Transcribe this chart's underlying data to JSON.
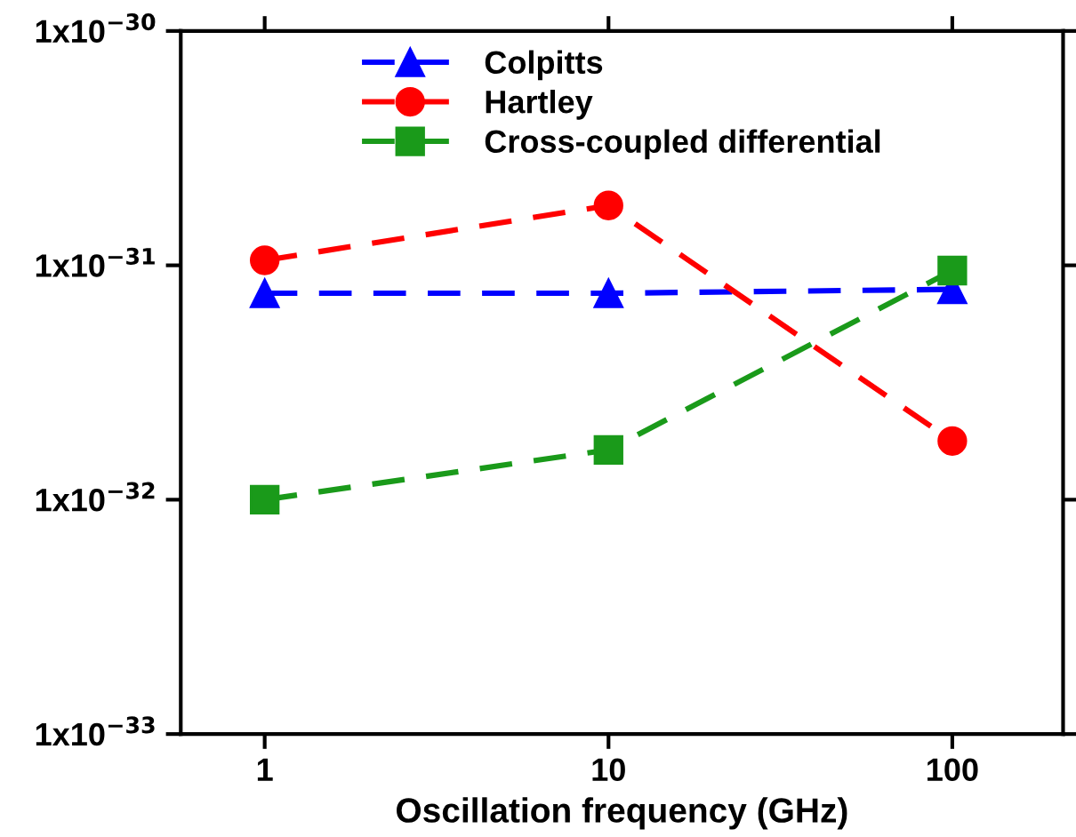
{
  "chart_data": {
    "type": "line",
    "xlabel": "Oscillation frequency (GHz)",
    "log": "xy",
    "x": [
      1,
      10,
      100
    ],
    "series": [
      {
        "name": "Colpitts",
        "color": "#0000ff",
        "marker": "triangle",
        "line_style": "dashed",
        "values": [
          7.6e-32,
          7.6e-32,
          7.9e-32
        ]
      },
      {
        "name": "Hartley",
        "color": "#ff0000",
        "marker": "circle",
        "line_style": "dashed",
        "values": [
          1.05e-31,
          1.8e-31,
          1.78e-32
        ]
      },
      {
        "name": "Cross-coupled differential",
        "color": "#1a9a1a",
        "marker": "square",
        "line_style": "dashed",
        "values": [
          1e-32,
          1.63e-32,
          9.5e-32
        ]
      }
    ],
    "xlim": [
      0.57,
      210
    ],
    "xticks": [
      1,
      10,
      100
    ],
    "ylim": [
      1e-33,
      1e-30
    ],
    "yticks": [
      {
        "value": 1e-33,
        "label": "1x10$^{−33}$"
      },
      {
        "value": 1e-32,
        "label": "1x10$^{−32}$"
      },
      {
        "value": 1e-31,
        "label": "1x10$^{−31}$"
      },
      {
        "value": 1e-30,
        "label": "1x10$^{−30}$"
      }
    ],
    "legend": "top",
    "grid": false
  }
}
